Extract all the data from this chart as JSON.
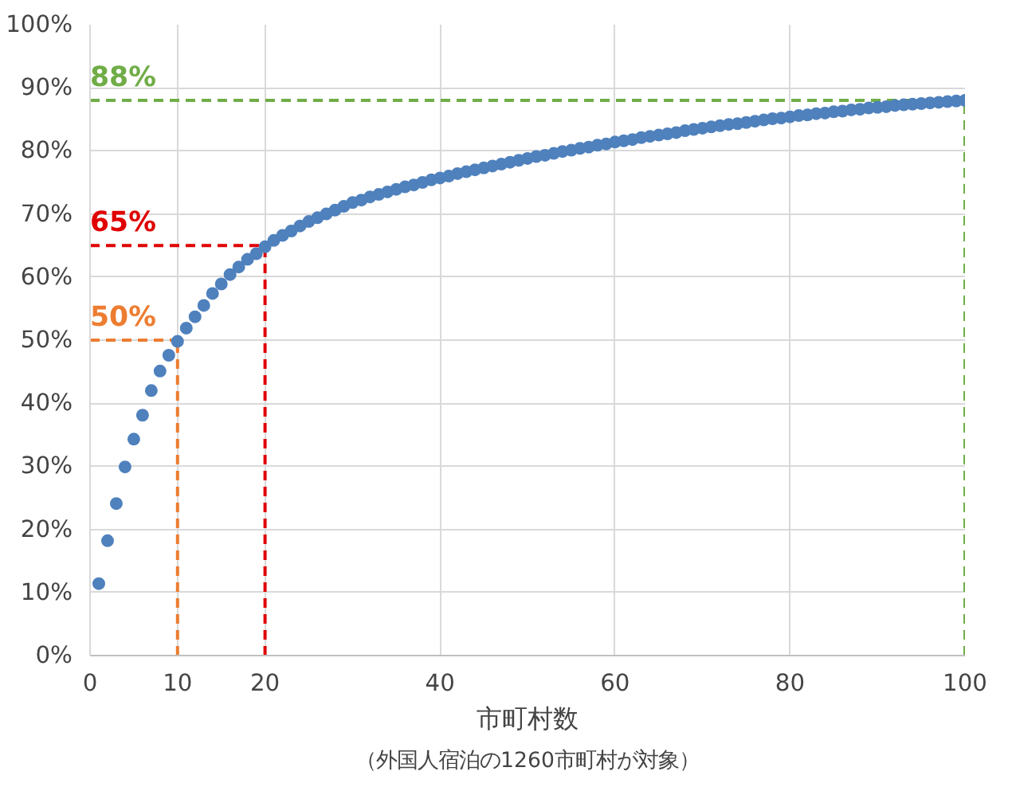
{
  "chart_data": {
    "type": "scatter",
    "xlabel": "市町村数",
    "annotations": [
      "（外国人宿泊の1260市町村が対象）"
    ],
    "x": [
      1,
      2,
      3,
      4,
      5,
      6,
      7,
      8,
      9,
      10,
      11,
      12,
      13,
      14,
      15,
      16,
      17,
      18,
      19,
      20,
      21,
      22,
      23,
      24,
      25,
      26,
      27,
      28,
      29,
      30,
      31,
      32,
      33,
      34,
      35,
      36,
      37,
      38,
      39,
      40,
      41,
      42,
      43,
      44,
      45,
      46,
      47,
      48,
      49,
      50,
      51,
      52,
      53,
      54,
      55,
      56,
      57,
      58,
      59,
      60,
      61,
      62,
      63,
      64,
      65,
      66,
      67,
      68,
      69,
      70,
      71,
      72,
      73,
      74,
      75,
      76,
      77,
      78,
      79,
      80,
      81,
      82,
      83,
      84,
      85,
      86,
      87,
      88,
      89,
      90,
      91,
      92,
      93,
      94,
      95,
      96,
      97,
      98,
      99,
      100
    ],
    "series": [
      {
        "color": "#4f81bd",
        "values": [
          11.4,
          18.2,
          24.1,
          29.9,
          34.3,
          38.1,
          42.0,
          45.1,
          47.6,
          49.8,
          51.9,
          53.7,
          55.5,
          57.4,
          58.9,
          60.4,
          61.6,
          62.8,
          63.7,
          64.8,
          65.8,
          66.6,
          67.3,
          68.1,
          68.8,
          69.4,
          70.0,
          70.6,
          71.2,
          71.8,
          72.2,
          72.7,
          73.1,
          73.5,
          73.9,
          74.3,
          74.6,
          75.0,
          75.4,
          75.7,
          76.0,
          76.4,
          76.7,
          77.0,
          77.3,
          77.6,
          77.9,
          78.2,
          78.5,
          78.8,
          79.1,
          79.3,
          79.6,
          79.9,
          80.1,
          80.4,
          80.6,
          80.9,
          81.1,
          81.4,
          81.6,
          81.8,
          82.1,
          82.3,
          82.5,
          82.7,
          82.9,
          83.2,
          83.4,
          83.6,
          83.8,
          84.0,
          84.2,
          84.3,
          84.5,
          84.7,
          84.9,
          85.1,
          85.2,
          85.4,
          85.6,
          85.7,
          85.9,
          86.0,
          86.2,
          86.3,
          86.5,
          86.6,
          86.8,
          86.9,
          87.0,
          87.2,
          87.3,
          87.4,
          87.5,
          87.6,
          87.7,
          87.8,
          87.9,
          88.0
        ]
      }
    ],
    "xlim": [
      0,
      100
    ],
    "xticks": [
      0,
      10,
      20,
      40,
      60,
      80,
      100
    ],
    "ylim": [
      0,
      100
    ],
    "yticks": [
      {
        "value": 0,
        "label": "0%"
      },
      {
        "value": 10,
        "label": "10%"
      },
      {
        "value": 20,
        "label": "20%"
      },
      {
        "value": 30,
        "label": "30%"
      },
      {
        "value": 40,
        "label": "40%"
      },
      {
        "value": 50,
        "label": "50%"
      },
      {
        "value": 60,
        "label": "60%"
      },
      {
        "value": 70,
        "label": "70%"
      },
      {
        "value": 80,
        "label": "80%"
      },
      {
        "value": 90,
        "label": "90%"
      },
      {
        "value": 100,
        "label": "100%"
      }
    ],
    "ref_lines": [
      {
        "axis": "y",
        "value": 88,
        "label": "88%",
        "color": "#70ad47",
        "line_style": "dashed"
      },
      {
        "axis": "y",
        "value": 65,
        "label": "65%",
        "color": "#e00000",
        "line_style": "dashed"
      },
      {
        "axis": "y",
        "value": 50,
        "label": "50%",
        "color": "#ed7d31",
        "line_style": "dashed"
      },
      {
        "axis": "x",
        "value": 100,
        "color": "#70ad47",
        "line_style": "dashed"
      },
      {
        "axis": "x",
        "value": 20,
        "color": "#e00000",
        "line_style": "dashed"
      },
      {
        "axis": "x",
        "value": 10,
        "color": "#ed7d31",
        "line_style": "dashed"
      }
    ],
    "grid": true,
    "marker": "circle"
  }
}
